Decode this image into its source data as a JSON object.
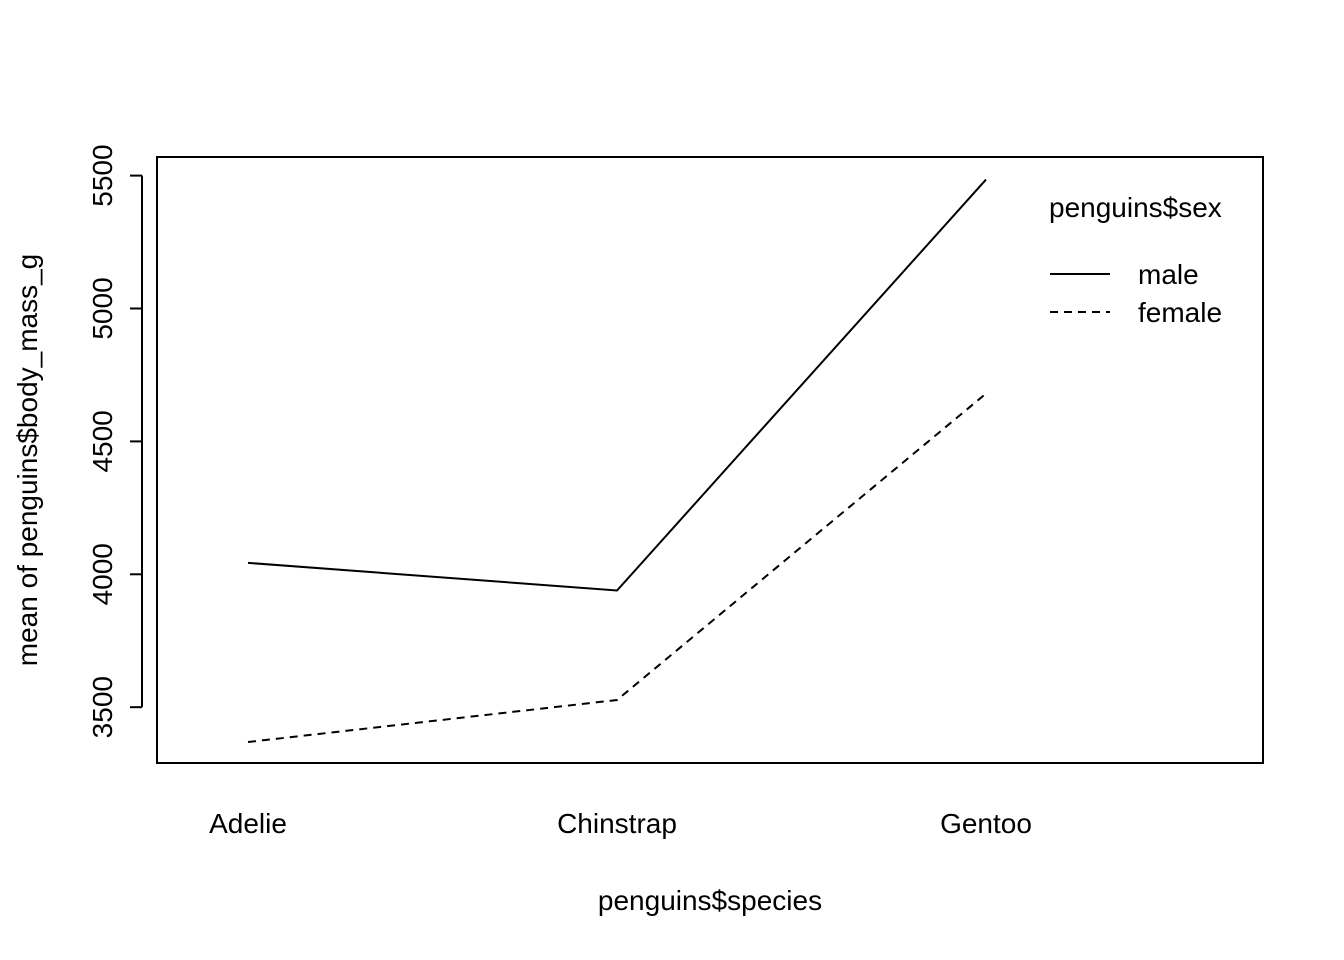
{
  "chart_data": {
    "type": "line",
    "title": "",
    "xlabel": "penguins$species",
    "ylabel": "mean of  penguins$body_mass_g",
    "categories": [
      "Adelie",
      "Chinstrap",
      "Gentoo"
    ],
    "y_ticks": [
      3500,
      4000,
      4500,
      5000,
      5500
    ],
    "ylim": [
      3290,
      5570
    ],
    "grid": false,
    "legend": {
      "title": "penguins$sex",
      "placement": "top-right"
    },
    "series": [
      {
        "name": "male",
        "values": [
          4043,
          3939,
          5485
        ],
        "line_style": "solid",
        "color": "#000000"
      },
      {
        "name": "female",
        "values": [
          3369,
          3527,
          4680
        ],
        "line_style": "dashed",
        "color": "#000000"
      }
    ]
  }
}
